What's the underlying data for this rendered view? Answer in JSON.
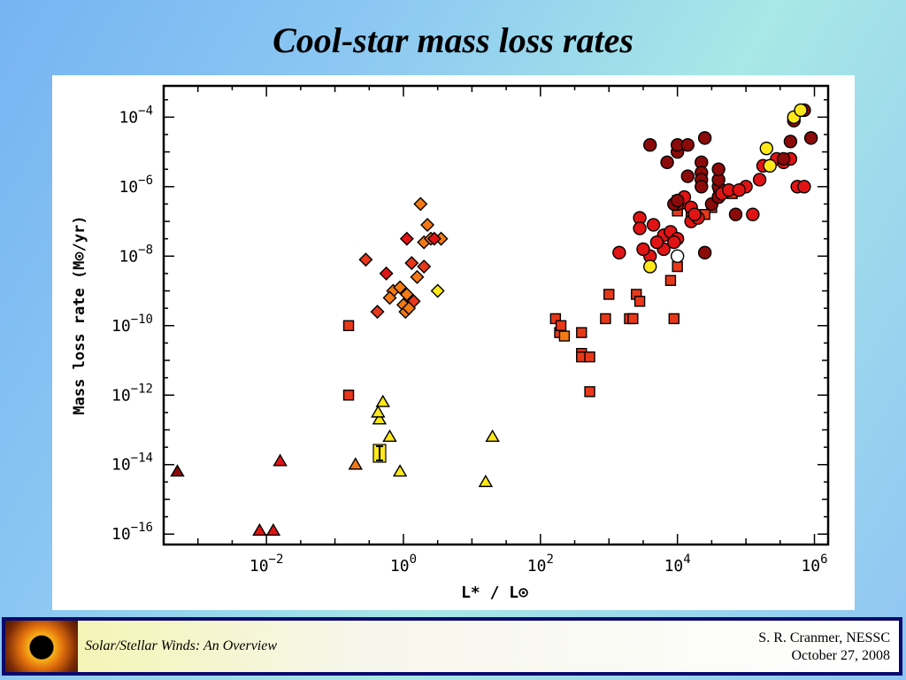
{
  "slide": {
    "title": "Cool-star mass loss rates"
  },
  "footer": {
    "left_text": "Solar/Stellar Winds: An Overview",
    "author": "S. R. Cranmer, NESSC",
    "date": "October 27, 2008"
  },
  "colors": {
    "dark_red": "#8b0a0a",
    "red": "#e01414",
    "red_orange": "#e8381a",
    "orange": "#f47a14",
    "yellow": "#ffe81a",
    "white": "#ffffff"
  },
  "chart_data": {
    "type": "scatter",
    "title": "",
    "xlabel": "L* / L⊙",
    "ylabel": "Mass loss rate (M⊙/yr)",
    "xscale": "log",
    "yscale": "log",
    "xlim_log10": [
      -3.5,
      6.2
    ],
    "ylim_log10": [
      -16.3,
      -3.1
    ],
    "xticks": [
      {
        "base": "10",
        "exp": "−2",
        "log": -2
      },
      {
        "base": "10",
        "exp": "0",
        "log": 0
      },
      {
        "base": "10",
        "exp": "2",
        "log": 2
      },
      {
        "base": "10",
        "exp": "4",
        "log": 4
      },
      {
        "base": "10",
        "exp": "6",
        "log": 6
      }
    ],
    "yticks": [
      {
        "base": "10",
        "exp": "−4",
        "log": -4
      },
      {
        "base": "10",
        "exp": "−6",
        "log": -6
      },
      {
        "base": "10",
        "exp": "−8",
        "log": -8
      },
      {
        "base": "10",
        "exp": "−10",
        "log": -10
      },
      {
        "base": "10",
        "exp": "−12",
        "log": -12
      },
      {
        "base": "10",
        "exp": "−14",
        "log": -14
      },
      {
        "base": "10",
        "exp": "−16",
        "log": -16
      }
    ],
    "grid": false,
    "series": [
      {
        "marker": "triangle",
        "points": [
          [
            -3.3,
            -14.2,
            "dark_red"
          ],
          [
            -2.1,
            -15.9,
            "red"
          ],
          [
            -1.9,
            -15.9,
            "red"
          ],
          [
            -1.8,
            -13.9,
            "red"
          ],
          [
            -0.7,
            -14.0,
            "orange"
          ],
          [
            -0.3,
            -12.2,
            "yellow"
          ],
          [
            -0.35,
            -12.7,
            "yellow"
          ],
          [
            -0.37,
            -12.5,
            "yellow"
          ],
          [
            -0.2,
            -13.2,
            "yellow"
          ],
          [
            -0.05,
            -14.2,
            "yellow"
          ],
          [
            1.2,
            -14.5,
            "yellow"
          ],
          [
            1.3,
            -13.2,
            "yellow"
          ]
        ]
      },
      {
        "marker": "diamond",
        "points": [
          [
            0.25,
            -6.5,
            "orange"
          ],
          [
            0.35,
            -7.1,
            "orange"
          ],
          [
            0.3,
            -7.6,
            "orange"
          ],
          [
            0.4,
            -7.5,
            "orange"
          ],
          [
            0.55,
            -7.5,
            "orange"
          ],
          [
            0.45,
            -7.5,
            "red"
          ],
          [
            0.05,
            -7.5,
            "red"
          ],
          [
            -0.55,
            -8.1,
            "red_orange"
          ],
          [
            0.12,
            -8.2,
            "red_orange"
          ],
          [
            0.3,
            -8.3,
            "red_orange"
          ],
          [
            -0.25,
            -8.5,
            "red"
          ],
          [
            0.2,
            -8.6,
            "orange"
          ],
          [
            -0.15,
            -9.0,
            "orange"
          ],
          [
            -0.05,
            -8.9,
            "orange"
          ],
          [
            0.05,
            -9.1,
            "orange"
          ],
          [
            -0.2,
            -9.2,
            "orange"
          ],
          [
            0.15,
            -9.3,
            "red_orange"
          ],
          [
            0.0,
            -9.4,
            "orange"
          ],
          [
            0.03,
            -9.6,
            "orange"
          ],
          [
            0.08,
            -9.5,
            "orange"
          ],
          [
            -0.38,
            -9.6,
            "red_orange"
          ],
          [
            0.5,
            -9.0,
            "yellow"
          ]
        ]
      },
      {
        "marker": "square",
        "points": [
          [
            -0.8,
            -10.0,
            "red_orange"
          ],
          [
            -0.8,
            -12.0,
            "red_orange"
          ],
          [
            2.22,
            -9.8,
            "red_orange"
          ],
          [
            2.28,
            -10.2,
            "red_orange"
          ],
          [
            2.35,
            -10.3,
            "orange"
          ],
          [
            2.3,
            -10.0,
            "red_orange"
          ],
          [
            2.6,
            -10.2,
            "red_orange"
          ],
          [
            2.6,
            -10.8,
            "red_orange"
          ],
          [
            2.6,
            -10.9,
            "red_orange"
          ],
          [
            2.72,
            -10.9,
            "red_orange"
          ],
          [
            2.72,
            -11.9,
            "red_orange"
          ],
          [
            2.95,
            -9.8,
            "red_orange"
          ],
          [
            3.0,
            -9.1,
            "red_orange"
          ],
          [
            3.3,
            -9.8,
            "red_orange"
          ],
          [
            3.35,
            -9.8,
            "red_orange"
          ],
          [
            3.4,
            -9.1,
            "red_orange"
          ],
          [
            3.45,
            -9.3,
            "red_orange"
          ],
          [
            3.9,
            -8.7,
            "red_orange"
          ],
          [
            3.95,
            -9.8,
            "red_orange"
          ],
          [
            4.0,
            -8.3,
            "red_orange"
          ],
          [
            4.0,
            -6.4,
            "red_orange"
          ],
          [
            4.05,
            -6.5,
            "red_orange"
          ],
          [
            4.2,
            -6.8,
            "red_orange"
          ],
          [
            4.5,
            -6.6,
            "red_orange"
          ],
          [
            4.8,
            -6.2,
            "red_orange"
          ],
          [
            4.6,
            -6.0,
            "red_orange"
          ],
          [
            4.0,
            -6.7,
            "red_orange"
          ],
          [
            4.4,
            -6.8,
            "red_orange"
          ]
        ]
      },
      {
        "marker": "circle",
        "points": [
          [
            3.6,
            -8.0,
            "red"
          ],
          [
            3.8,
            -7.4,
            "red"
          ],
          [
            3.8,
            -7.8,
            "red"
          ],
          [
            3.7,
            -7.6,
            "red"
          ],
          [
            3.9,
            -7.3,
            "red"
          ],
          [
            4.0,
            -7.5,
            "red"
          ],
          [
            4.0,
            -6.5,
            "red"
          ],
          [
            4.1,
            -6.3,
            "red"
          ],
          [
            4.2,
            -7.0,
            "red"
          ],
          [
            4.3,
            -6.9,
            "red"
          ],
          [
            4.0,
            -5.0,
            "dark_red"
          ],
          [
            4.0,
            -4.8,
            "dark_red"
          ],
          [
            4.15,
            -5.7,
            "dark_red"
          ],
          [
            4.35,
            -5.3,
            "dark_red"
          ],
          [
            4.35,
            -5.6,
            "dark_red"
          ],
          [
            4.35,
            -5.8,
            "dark_red"
          ],
          [
            4.35,
            -6.0,
            "dark_red"
          ],
          [
            4.5,
            -6.5,
            "dark_red"
          ],
          [
            4.6,
            -6.0,
            "dark_red"
          ],
          [
            4.6,
            -5.8,
            "dark_red"
          ],
          [
            4.6,
            -5.5,
            "dark_red"
          ],
          [
            4.6,
            -6.3,
            "dark_red"
          ],
          [
            4.4,
            -4.6,
            "dark_red"
          ],
          [
            4.6,
            -6.3,
            "dark_red"
          ],
          [
            4.4,
            -7.9,
            "dark_red"
          ],
          [
            3.85,
            -5.3,
            "dark_red"
          ],
          [
            3.95,
            -6.5,
            "dark_red"
          ],
          [
            4.0,
            -6.4,
            "dark_red"
          ],
          [
            3.6,
            -4.8,
            "dark_red"
          ],
          [
            4.15,
            -4.8,
            "dark_red"
          ],
          [
            4.85,
            -6.8,
            "dark_red"
          ],
          [
            5.1,
            -6.8,
            "red"
          ],
          [
            5.0,
            -6.0,
            "red"
          ],
          [
            5.2,
            -5.8,
            "red"
          ],
          [
            5.25,
            -5.4,
            "red"
          ],
          [
            5.45,
            -5.2,
            "red"
          ],
          [
            5.55,
            -5.3,
            "red"
          ],
          [
            5.65,
            -5.2,
            "red"
          ],
          [
            5.75,
            -6.0,
            "red"
          ],
          [
            5.85,
            -6.0,
            "red"
          ],
          [
            5.85,
            -3.8,
            "dark_red"
          ],
          [
            5.7,
            -4.1,
            "dark_red"
          ],
          [
            5.65,
            -4.7,
            "dark_red"
          ],
          [
            5.95,
            -4.6,
            "dark_red"
          ],
          [
            5.55,
            -5.2,
            "dark_red"
          ],
          [
            5.3,
            -4.9,
            "yellow"
          ],
          [
            5.35,
            -5.4,
            "yellow"
          ],
          [
            5.7,
            -4.0,
            "yellow"
          ],
          [
            5.8,
            -3.8,
            "yellow"
          ],
          [
            3.15,
            -7.9,
            "red"
          ],
          [
            3.5,
            -7.8,
            "red"
          ],
          [
            3.45,
            -6.9,
            "red"
          ],
          [
            3.45,
            -7.2,
            "red"
          ],
          [
            3.6,
            -8.3,
            "yellow"
          ],
          [
            3.95,
            -7.6,
            "red"
          ],
          [
            4.2,
            -6.6,
            "red"
          ],
          [
            4.25,
            -6.8,
            "red"
          ],
          [
            4.65,
            -6.2,
            "red"
          ],
          [
            4.75,
            -6.1,
            "red"
          ],
          [
            4.9,
            -6.1,
            "red"
          ],
          [
            3.65,
            -7.1,
            "red"
          ],
          [
            4.0,
            -8.0,
            "white"
          ]
        ]
      }
    ]
  }
}
